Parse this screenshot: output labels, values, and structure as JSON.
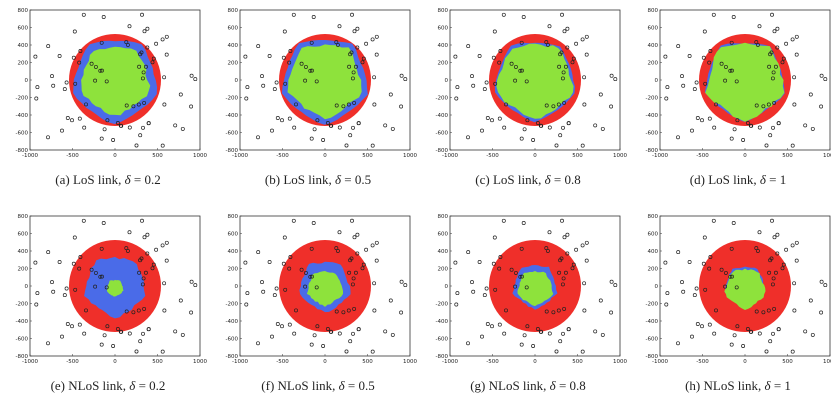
{
  "axes": {
    "x_ticks": [
      "-1000",
      "-500",
      "0",
      "500",
      "1000"
    ],
    "y_ticks": [
      "800",
      "600",
      "400",
      "200",
      "0",
      "-200",
      "-400",
      "-600",
      "-800"
    ]
  },
  "colors": {
    "red": "#ef2f2a",
    "blue": "#4a6be8",
    "green": "#8ee23c",
    "point": "#222222"
  },
  "panels": [
    {
      "letter": "(a)",
      "link": "LoS link,",
      "delta": "0.2",
      "type": "los",
      "green_r": 0.82,
      "blue_r": 0.98
    },
    {
      "letter": "(b)",
      "link": "LoS link,",
      "delta": "0.5",
      "type": "los",
      "green_r": 0.88,
      "blue_r": 0.99
    },
    {
      "letter": "(c)",
      "link": "LoS link,",
      "delta": "0.8",
      "type": "los",
      "green_r": 0.9,
      "blue_r": 0.93
    },
    {
      "letter": "(d)",
      "link": "LoS link,",
      "delta": "1",
      "type": "los",
      "green_r": 0.92,
      "blue_r": 0.92
    },
    {
      "letter": "(e)",
      "link": "NLoS link,",
      "delta": "0.2",
      "type": "nlos",
      "green_r": 0.2,
      "blue_r": 0.72
    },
    {
      "letter": "(f)",
      "link": "NLoS link,",
      "delta": "0.5",
      "type": "nlos",
      "green_r": 0.42,
      "blue_r": 0.6
    },
    {
      "letter": "(g)",
      "link": "NLoS link,",
      "delta": "0.8",
      "type": "nlos",
      "green_r": 0.42,
      "blue_r": 0.52
    },
    {
      "letter": "(h)",
      "link": "NLoS link,",
      "delta": "1",
      "type": "nlos",
      "green_r": 0.48,
      "blue_r": 0.48
    }
  ]
}
